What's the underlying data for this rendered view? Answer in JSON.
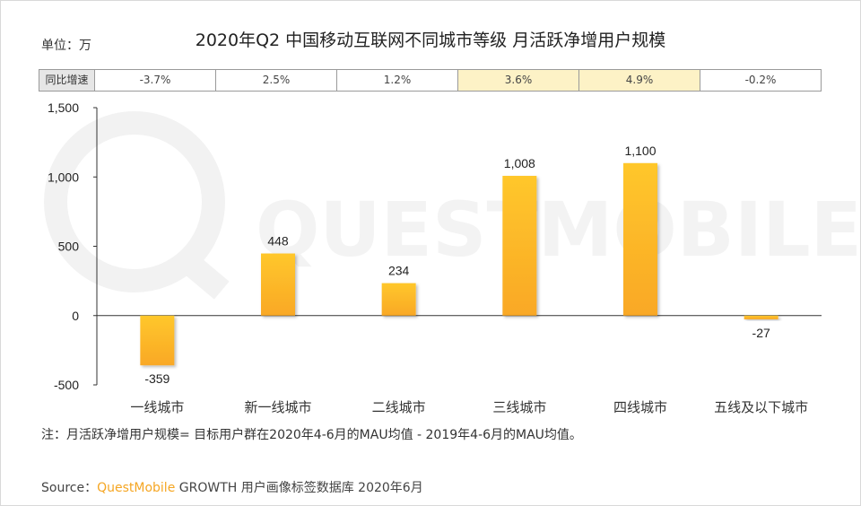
{
  "header": {
    "unit": "单位：万",
    "title": "2020年Q2 中国移动互联网不同城市等级 月活跃净增用户规模"
  },
  "yoy": {
    "label": "同比增速",
    "cells": [
      "-3.7%",
      "2.5%",
      "1.2%",
      "3.6%",
      "4.9%",
      "-0.2%"
    ],
    "highlighted": [
      false,
      false,
      false,
      true,
      true,
      false
    ],
    "highlight_color": "#fdf2c6"
  },
  "watermark": "QUESTMOBILE",
  "chart_data": {
    "type": "bar",
    "categories": [
      "一线城市",
      "新一线城市",
      "二线城市",
      "三线城市",
      "四线城市",
      "五线及以下城市"
    ],
    "values": [
      -359,
      448,
      234,
      1008,
      1100,
      -27
    ],
    "data_labels": [
      "-359",
      "448",
      "234",
      "1,008",
      "1,100",
      "-27"
    ],
    "ylim": [
      -500,
      1500
    ],
    "yticks": [
      -500,
      0,
      500,
      1000,
      1500
    ],
    "ytick_labels": [
      "-500",
      "0",
      "500",
      "1,000",
      "1,500"
    ],
    "bar_color_top": "#ffc72c",
    "bar_color_bottom": "#f9a825",
    "grid": false
  },
  "footer": {
    "note": "注：月活跃净增用户规模= 目标用户群在2020年4-6月的MAU均值 - 2019年4-6月的MAU均值。",
    "source_label": "Source：",
    "source_brand": "QuestMobile",
    "source_rest": " GROWTH 用户画像标签数据库 2020年6月"
  }
}
